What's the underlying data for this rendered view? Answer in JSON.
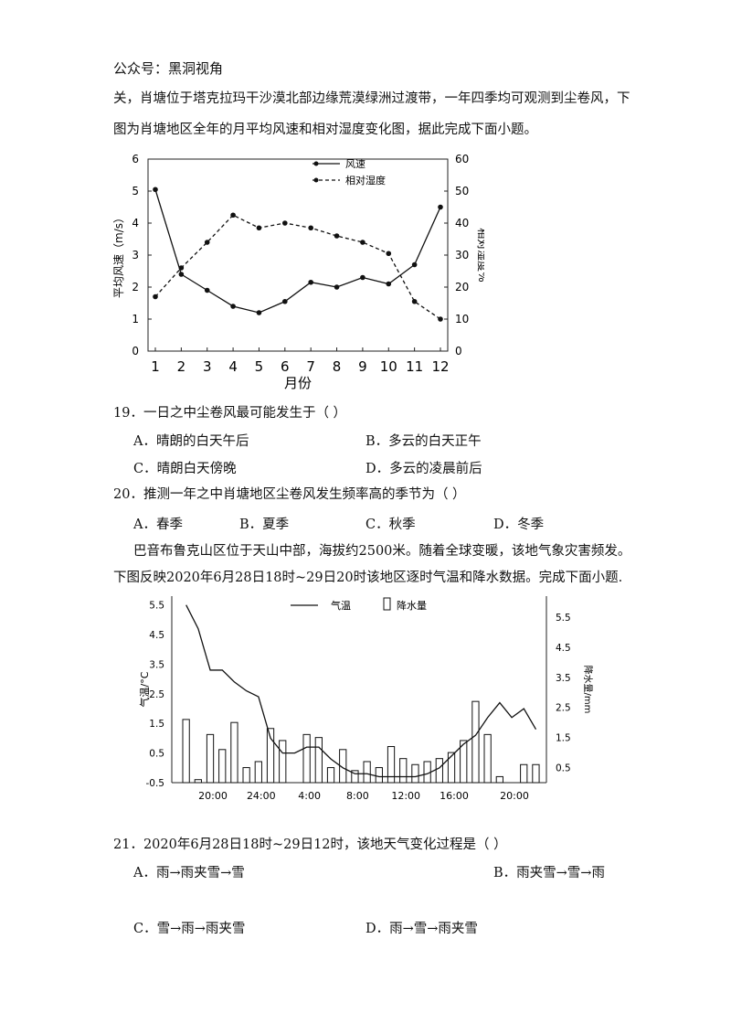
{
  "watermark": "公众号：黑洞视角",
  "intro": {
    "line1": "关，肖塘位于塔克拉玛干沙漠北部边缘荒漠绿洲过渡带，一年四季均可观测到尘卷风，下",
    "line2": "图为肖塘地区全年的月平均风速和相对湿度变化图，据此完成下面小题。"
  },
  "chart1": {
    "chart_data": {
      "type": "line",
      "x": [
        1,
        2,
        3,
        4,
        5,
        6,
        7,
        8,
        9,
        10,
        11,
        12
      ],
      "xlabel": "月份",
      "ylabel_left": "平均风速（m/s）",
      "ylabel_right": "相对湿度%",
      "y_left_ticks": [
        "0",
        "1",
        "2",
        "3",
        "4",
        "5",
        "6"
      ],
      "y_right_ticks": [
        "0",
        "10",
        "20",
        "30",
        "40",
        "50",
        "60"
      ],
      "ylim_left": [
        0,
        6
      ],
      "ylim_right": [
        0,
        60
      ],
      "series": [
        {
          "name": "风速",
          "axis": "left",
          "style": "solid",
          "values": [
            5.05,
            2.4,
            1.9,
            1.4,
            1.2,
            1.55,
            2.15,
            2.0,
            2.3,
            2.1,
            2.7,
            4.5
          ]
        },
        {
          "name": "相对湿度",
          "axis": "right",
          "style": "dashed",
          "values": [
            17,
            26,
            34,
            42.5,
            38.5,
            40,
            38.5,
            36,
            34,
            30.5,
            15.5,
            10
          ]
        }
      ],
      "legend": "top-center"
    }
  },
  "q19": {
    "stem": "19．一日之中尘卷风最可能发生于（    ）",
    "A": "A．晴朗的白天午后",
    "B": "B．多云的白天正午",
    "C": "C．晴朗白天傍晚",
    "D": "D．多云的凌晨前后"
  },
  "q20": {
    "stem": "20．推测一年之中肖塘地区尘卷风发生频率高的季节为（    ）",
    "A": "A．春季",
    "B": "B．夏季",
    "C": "C．秋季",
    "D": "D．冬季"
  },
  "intro2": {
    "line1": "巴音布鲁克山区位于天山中部，海拔约2500米。随着全球变暖，该地气象灾害频发。",
    "line2": "下图反映2020年6月28日18时~29日20时该地区逐时气温和降水数据。完成下面小题."
  },
  "chart2": {
    "chart_data": {
      "type": "bar",
      "x_ticks": [
        "20:00",
        "24:00",
        "4:00",
        "8:00",
        "12:00",
        "16:00",
        "20:00"
      ],
      "ylabel_left": "气温/°C",
      "ylabel_right": "降水量/mm",
      "y_left_ticks": [
        "-0.5",
        "0.5",
        "1.5",
        "2.5",
        "3.5",
        "4.5",
        "5.5"
      ],
      "y_right_ticks": [
        "0.5",
        "1.5",
        "2.5",
        "3.5",
        "4.5",
        "5.5"
      ],
      "ylim_left": [
        -0.5,
        5.8
      ],
      "ylim_right": [
        0,
        6.2
      ],
      "series": [
        {
          "name": "气温",
          "type": "line",
          "axis": "left",
          "values": [
            5.5,
            4.7,
            3.3,
            3.3,
            2.9,
            2.6,
            2.4,
            1.0,
            0.5,
            0.5,
            0.7,
            0.7,
            0.3,
            0.0,
            -0.2,
            -0.2,
            -0.3,
            -0.3,
            -0.3,
            -0.3,
            -0.2,
            0.0,
            0.4,
            0.8,
            1.1,
            1.7,
            2.2,
            1.7,
            2.0,
            1.3
          ]
        },
        {
          "name": "降水量",
          "type": "bar",
          "axis": "right",
          "values": [
            2.1,
            0.1,
            1.6,
            1.1,
            2.0,
            0.5,
            0.7,
            1.8,
            1.4,
            0,
            1.6,
            1.5,
            0.5,
            1.1,
            0.4,
            0.7,
            0.5,
            1.2,
            0.8,
            0.6,
            0.7,
            0.8,
            1.0,
            1.4,
            2.7,
            1.6,
            0.2,
            0,
            0.6,
            0.6
          ]
        }
      ],
      "legend": "top-center"
    }
  },
  "q21": {
    "stem": "21．2020年6月28日18时~29日12时，该地天气变化过程是（    ）",
    "A": "A．雨→雨夹雪→雪",
    "B": "B．雨夹雪→雪→雨",
    "C": "C．雪→雨→雨夹雪",
    "D": "D．雨→雪→雨夹雪"
  }
}
